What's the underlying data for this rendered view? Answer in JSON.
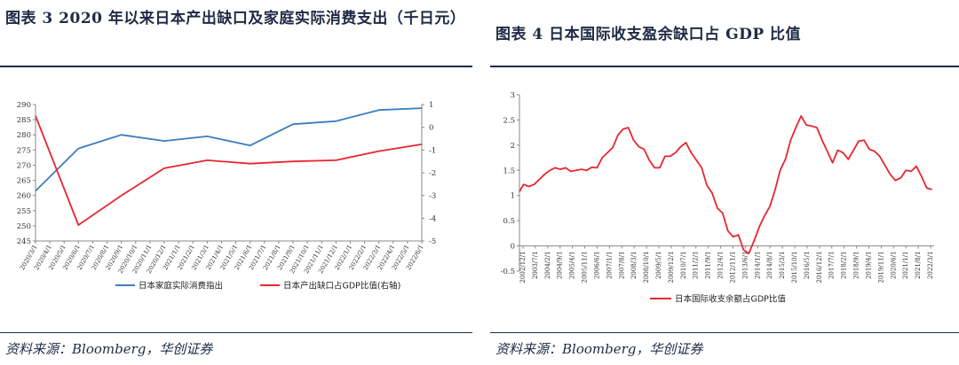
{
  "left": {
    "title": "图表 3   2020 年以来日本产出缺口及家庭实际消费支出（千日元）",
    "source": "资料来源：Bloomberg，华创证券"
  },
  "right": {
    "title": "图表 4   日本国际收支盈余缺口占 GDP 比值",
    "source": "资料来源：Bloomberg，华创证券"
  },
  "chart_data": [
    {
      "type": "line",
      "title": "2020 年以来日本产出缺口及家庭实际消费支出（千日元）",
      "x": [
        "2020/3/1",
        "2020/4/1",
        "2020/5/1",
        "2020/6/1",
        "2020/7/1",
        "2020/8/1",
        "2020/9/1",
        "2020/10/1",
        "2020/11/1",
        "2020/12/1",
        "2021/1/1",
        "2021/2/1",
        "2021/3/1",
        "2021/4/1",
        "2021/5/1",
        "2021/6/1",
        "2021/7/1",
        "2021/8/1",
        "2021/9/1",
        "2021/10/1",
        "2021/11/1",
        "2021/12/1",
        "2022/1/1",
        "2022/2/1",
        "2022/3/1",
        "2022/4/1",
        "2022/5/1",
        "2022/6/1"
      ],
      "ylim_left": [
        245,
        290
      ],
      "yticks_left": [
        245,
        250,
        255,
        260,
        265,
        270,
        275,
        280,
        285,
        290
      ],
      "ylim_right": [
        -5,
        1
      ],
      "yticks_right": [
        -5,
        -4,
        -3,
        -2,
        -1,
        0,
        1
      ],
      "series": [
        {
          "name": "日本家庭实际消费指出",
          "color": "#3b7dbf",
          "axis": "left",
          "points": [
            [
              0,
              261.5
            ],
            [
              3,
              275.5
            ],
            [
              6,
              280.0
            ],
            [
              9,
              278.0
            ],
            [
              12,
              279.5
            ],
            [
              15,
              276.5
            ],
            [
              18,
              283.5
            ],
            [
              21,
              284.5
            ],
            [
              24,
              288.2
            ],
            [
              27,
              288.8
            ]
          ]
        },
        {
          "name": "日本产出缺口占GDP比值(右轴)",
          "color": "#e8262f",
          "axis": "right",
          "points": [
            [
              0,
              0.5
            ],
            [
              3,
              -4.3
            ],
            [
              6,
              -3.0
            ],
            [
              9,
              -1.8
            ],
            [
              12,
              -1.45
            ],
            [
              15,
              -1.6
            ],
            [
              18,
              -1.5
            ],
            [
              21,
              -1.45
            ],
            [
              24,
              -1.05
            ],
            [
              27,
              -0.75
            ]
          ]
        }
      ]
    },
    {
      "type": "line",
      "title": "日本国际收支盈余缺口占 GDP 比值",
      "x_tick_labels": [
        "2002/12/1",
        "2003/7/1",
        "2004/2/1",
        "2004/9/1",
        "2005/4/1",
        "2005/11/1",
        "2006/6/1",
        "2007/1/1",
        "2007/8/1",
        "2008/3/1",
        "2008/10/1",
        "2009/5/1",
        "2009/12/1",
        "2010/7/1",
        "2011/2/1",
        "2011/9/1",
        "2012/4/1",
        "2012/11/1",
        "2013/6/1",
        "2014/1/1",
        "2014/8/1",
        "2015/3/1",
        "2015/10/1",
        "2016/5/1",
        "2016/12/1",
        "2017/7/1",
        "2018/2/1",
        "2018/9/1",
        "2019/4/1",
        "2019/11/1",
        "2020/6/1",
        "2021/1/1",
        "2021/8/1",
        "2022/3/1"
      ],
      "ylim": [
        -0.5,
        3
      ],
      "yticks": [
        -0.5,
        0,
        0.5,
        1,
        1.5,
        2,
        2.5,
        3
      ],
      "series": [
        {
          "name": "日本国际收支余额占GDP比值",
          "color": "#e8262f",
          "x_years": [
            2002.9,
            2003.1,
            2003.35,
            2003.6,
            2003.85,
            2004.1,
            2004.35,
            2004.6,
            2004.85,
            2005.1,
            2005.35,
            2005.6,
            2005.85,
            2006.1,
            2006.35,
            2006.6,
            2006.85,
            2007.1,
            2007.35,
            2007.6,
            2007.85,
            2008.1,
            2008.35,
            2008.6,
            2008.85,
            2009.1,
            2009.35,
            2009.6,
            2009.85,
            2010.1,
            2010.35,
            2010.6,
            2010.85,
            2011.1,
            2011.35,
            2011.6,
            2011.85,
            2012.1,
            2012.35,
            2012.6,
            2012.85,
            2013.1,
            2013.35,
            2013.6,
            2013.85,
            2014.1,
            2014.35,
            2014.6,
            2014.85,
            2015.1,
            2015.35,
            2015.6,
            2015.85,
            2016.1,
            2016.35,
            2016.6,
            2016.85,
            2017.1,
            2017.35,
            2017.6,
            2017.85,
            2018.1,
            2018.35,
            2018.6,
            2018.85,
            2019.1,
            2019.35,
            2019.6,
            2019.85,
            2020.1,
            2020.35,
            2020.6,
            2020.85,
            2021.1,
            2021.35,
            2021.6,
            2021.85,
            2022.1,
            2022.35,
            2022.6
          ],
          "values": [
            1.08,
            1.22,
            1.18,
            1.22,
            1.32,
            1.42,
            1.5,
            1.55,
            1.52,
            1.55,
            1.48,
            1.5,
            1.52,
            1.5,
            1.56,
            1.55,
            1.75,
            1.85,
            1.95,
            2.2,
            2.32,
            2.35,
            2.1,
            1.97,
            1.92,
            1.7,
            1.55,
            1.55,
            1.78,
            1.78,
            1.85,
            1.97,
            2.05,
            1.85,
            1.7,
            1.55,
            1.2,
            1.05,
            0.75,
            0.65,
            0.3,
            0.18,
            0.22,
            -0.08,
            -0.15,
            0.1,
            0.38,
            0.6,
            0.78,
            1.1,
            1.5,
            1.72,
            2.1,
            2.35,
            2.58,
            2.4,
            2.38,
            2.35,
            2.1,
            1.88,
            1.65,
            1.9,
            1.85,
            1.72,
            1.9,
            2.08,
            2.1,
            1.92,
            1.88,
            1.78,
            1.6,
            1.42,
            1.3,
            1.35,
            1.5,
            1.48,
            1.58,
            1.38,
            1.15,
            1.12
          ]
        }
      ]
    }
  ]
}
